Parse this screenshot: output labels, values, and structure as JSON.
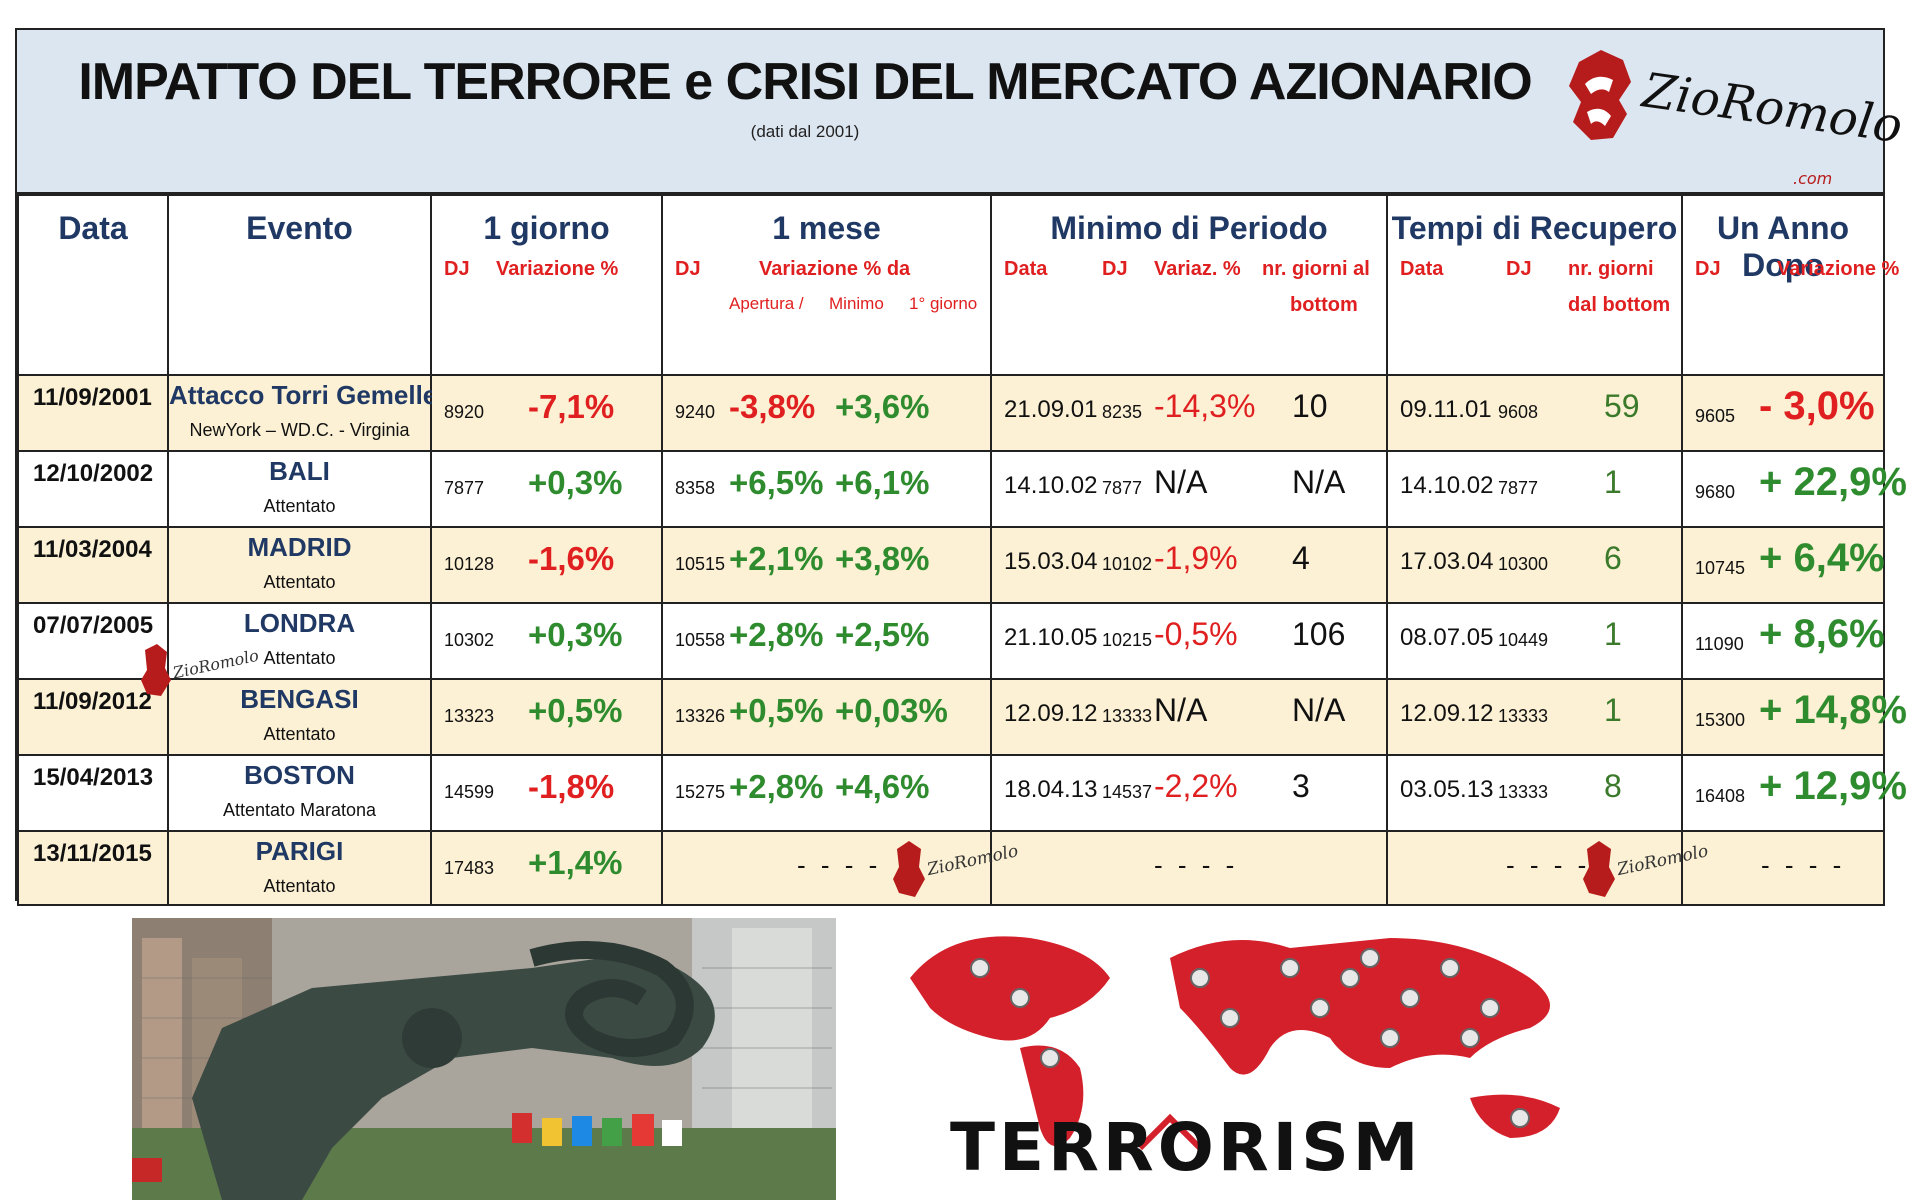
{
  "title": "IMPATTO DEL TERRORE e CRISI DEL MERCATO AZIONARIO",
  "subtitle": "(dati dal 2001)",
  "logo_text": "ZioRomolo",
  "logo_suffix": ".com",
  "headers": {
    "data": "Data",
    "evento": "Evento",
    "giorno": {
      "label": "1 giorno",
      "dj": "DJ",
      "var": "Variazione %"
    },
    "mese": {
      "label": "1 mese",
      "dj": "DJ",
      "var": "Variazione % da",
      "apertura": "Apertura  /",
      "minimo": "Minimo",
      "primo": "1° giorno"
    },
    "minimo": {
      "label": "Minimo di Periodo",
      "data": "Data",
      "dj": "DJ",
      "var": "Variaz. %",
      "giorni1": "nr. giorni al",
      "giorni2": "bottom"
    },
    "recupero": {
      "label": "Tempi di Recupero",
      "data": "Data",
      "dj": "DJ",
      "giorni1": "nr. giorni",
      "giorni2": "dal bottom"
    },
    "anno": {
      "label": "Un Anno Dopo",
      "dj": "DJ",
      "var": "Variazione %"
    }
  },
  "rows": [
    {
      "data": "11/09/2001",
      "evento": "Attacco Torri Gemelle",
      "sub": "NewYork – WD.C. - Virginia",
      "dj1": "8920",
      "v1": "-7,1%",
      "v1neg": true,
      "djm": "9240",
      "vma": "-3,8%",
      "vmaneg": true,
      "vmb": "+3,6%",
      "mind": "21.09.01",
      "mindj": "8235",
      "minv": "-14,3%",
      "ming": "10",
      "recd": "09.11.01",
      "recdj": "9608",
      "recg": "59",
      "djy": "9605",
      "vy": "- 3,0%",
      "vyneg": true
    },
    {
      "data": "12/10/2002",
      "evento": "BALI",
      "sub": "Attentato",
      "dj1": "7877",
      "v1": "+0,3%",
      "v1neg": false,
      "djm": "8358",
      "vma": "+6,5%",
      "vmaneg": false,
      "vmb": "+6,1%",
      "mind": "14.10.02",
      "mindj": "7877",
      "minv": "N/A",
      "ming": "N/A",
      "recd": "14.10.02",
      "recdj": "7877",
      "recg": "1",
      "djy": "9680",
      "vy": "+ 22,9%",
      "vyneg": false
    },
    {
      "data": "11/03/2004",
      "evento": "MADRID",
      "sub": "Attentato",
      "dj1": "10128",
      "v1": "-1,6%",
      "v1neg": true,
      "djm": "10515",
      "vma": "+2,1%",
      "vmaneg": false,
      "vmb": "+3,8%",
      "mind": "15.03.04",
      "mindj": "10102",
      "minv": "-1,9%",
      "ming": "4",
      "recd": "17.03.04",
      "recdj": "10300",
      "recg": "6",
      "djy": "10745",
      "vy": "+ 6,4%",
      "vyneg": false
    },
    {
      "data": "07/07/2005",
      "evento": "LONDRA",
      "sub": "Attentato",
      "dj1": "10302",
      "v1": "+0,3%",
      "v1neg": false,
      "djm": "10558",
      "vma": "+2,8%",
      "vmaneg": false,
      "vmb": "+2,5%",
      "mind": "21.10.05",
      "mindj": "10215",
      "minv": "-0,5%",
      "ming": "106",
      "recd": "08.07.05",
      "recdj": "10449",
      "recg": "1",
      "djy": "11090",
      "vy": "+ 8,6%",
      "vyneg": false
    },
    {
      "data": "11/09/2012",
      "evento": "BENGASI",
      "sub": "Attentato",
      "dj1": "13323",
      "v1": "+0,5%",
      "v1neg": false,
      "djm": "13326",
      "vma": "+0,5%",
      "vmaneg": false,
      "vmb": "+0,03%",
      "mind": "12.09.12",
      "mindj": "13333",
      "minv": "N/A",
      "ming": "N/A",
      "recd": "12.09.12",
      "recdj": "13333",
      "recg": "1",
      "djy": "15300",
      "vy": "+ 14,8%",
      "vyneg": false
    },
    {
      "data": "15/04/2013",
      "evento": "BOSTON",
      "sub": "Attentato Maratona",
      "dj1": "14599",
      "v1": "-1,8%",
      "v1neg": true,
      "djm": "15275",
      "vma": "+2,8%",
      "vmaneg": false,
      "vmb": "+4,6%",
      "mind": "18.04.13",
      "mindj": "14537",
      "minv": "-2,2%",
      "ming": "3",
      "recd": "03.05.13",
      "recdj": "13333",
      "recg": "8",
      "djy": "16408",
      "vy": "+ 12,9%",
      "vyneg": false
    },
    {
      "data": "13/11/2015",
      "evento": "PARIGI",
      "sub": "Attentato",
      "dj1": "17483",
      "v1": "+1,4%",
      "v1neg": false
    }
  ],
  "dash": "- - - -",
  "poster_text": "TERRORISM",
  "colors": {
    "title_band": "#dce6f1",
    "shade": "#fcf1d4",
    "navy": "#1f3864",
    "red": "#e02020",
    "green": "#2e8b2e",
    "map_red": "#d4202a"
  }
}
